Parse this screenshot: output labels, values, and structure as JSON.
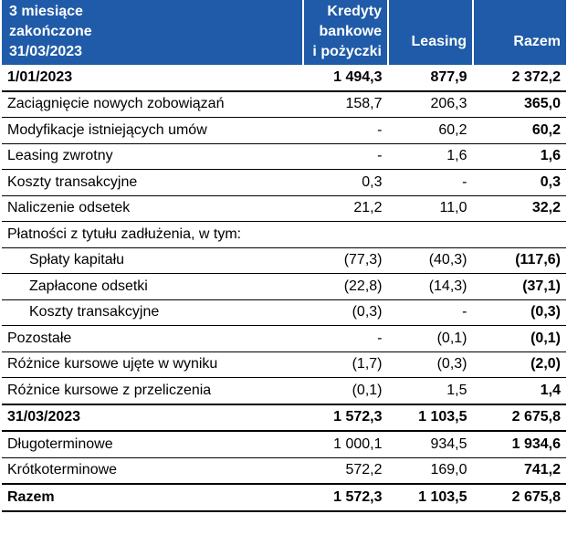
{
  "header": {
    "period_line1": "3 miesiące",
    "period_line2": "zakończone",
    "period_line3": "31/03/2023",
    "col_loans_line1": "Kredyty",
    "col_loans_line2": "bankowe",
    "col_loans_line3": "i pożyczki",
    "col_leasing": "Leasing",
    "col_total": "Razem"
  },
  "rows": [
    {
      "label": "1/01/2023",
      "loans": "1 494,3",
      "leasing": "877,9",
      "total": "2 372,2"
    },
    {
      "label": "Zaciągnięcie nowych zobowiązań",
      "loans": "158,7",
      "leasing": "206,3",
      "total": "365,0"
    },
    {
      "label": "Modyfikacje istniejących umów",
      "loans": "-",
      "leasing": "60,2",
      "total": "60,2"
    },
    {
      "label": "Leasing zwrotny",
      "loans": "-",
      "leasing": "1,6",
      "total": "1,6"
    },
    {
      "label": "Koszty transakcyjne",
      "loans": "0,3",
      "leasing": "-",
      "total": "0,3"
    },
    {
      "label": "Naliczenie odsetek",
      "loans": "21,2",
      "leasing": "11,0",
      "total": "32,2"
    },
    {
      "label": "Płatności z tytułu zadłużenia, w tym:",
      "loans": "",
      "leasing": "",
      "total": ""
    },
    {
      "label": "Spłaty kapitału",
      "loans": "(77,3)",
      "leasing": "(40,3)",
      "total": "(117,6)"
    },
    {
      "label": "Zapłacone odsetki",
      "loans": "(22,8)",
      "leasing": "(14,3)",
      "total": "(37,1)"
    },
    {
      "label": "Koszty transakcyjne",
      "loans": "(0,3)",
      "leasing": "-",
      "total": "(0,3)"
    },
    {
      "label": "Pozostałe",
      "loans": "-",
      "leasing": "(0,1)",
      "total": "(0,1)"
    },
    {
      "label": "Różnice kursowe ujęte w wyniku",
      "loans": "(1,7)",
      "leasing": "(0,3)",
      "total": "(2,0)"
    },
    {
      "label": "Różnice kursowe z przeliczenia",
      "loans": "(0,1)",
      "leasing": "1,5",
      "total": "1,4"
    },
    {
      "label": "31/03/2023",
      "loans": "1 572,3",
      "leasing": "1 103,5",
      "total": "2 675,8"
    },
    {
      "label": "Długoterminowe",
      "loans": "1 000,1",
      "leasing": "934,5",
      "total": "1 934,6"
    },
    {
      "label": "Krótkoterminowe",
      "loans": "572,2",
      "leasing": "169,0",
      "total": "741,2"
    },
    {
      "label": "Razem",
      "loans": "1 572,3",
      "leasing": "1 103,5",
      "total": "2 675,8"
    }
  ],
  "colors": {
    "header_bg": "#1f5ba8",
    "header_text": "#ffffff"
  }
}
